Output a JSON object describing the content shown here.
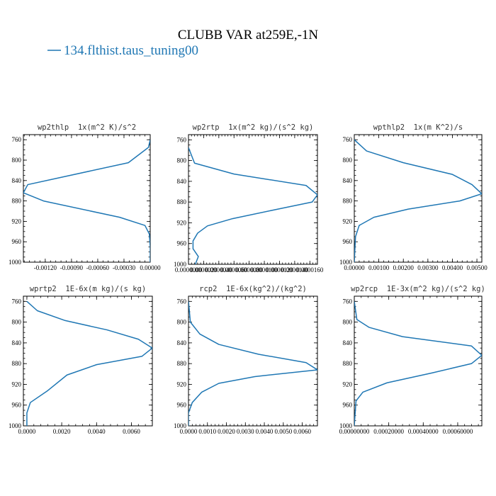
{
  "figure": {
    "title": "CLUBB VAR at259E,-1N",
    "legend": [
      {
        "label": "134.flthist.taus_tuning00",
        "color": "#1f77b4"
      }
    ],
    "series_color": "#1f77b4"
  },
  "chart_data": [
    {
      "type": "line",
      "title": "wp2thlp  1x(m^2 K)/s^2",
      "xlim": [
        -0.00145,
        0.0
      ],
      "ylim": [
        1000,
        750
      ],
      "x_ticks": [
        -0.0012,
        -0.0009,
        -0.0006,
        -0.0003,
        0.0
      ],
      "x_tick_labels": [
        "-0.00120",
        "-0.00090",
        "-0.00060",
        "-0.00030",
        "0.00000"
      ],
      "y_ticks": [
        760,
        800,
        840,
        880,
        920,
        960,
        1000
      ],
      "y_tick_labels": [
        "760",
        "800",
        "840",
        "880",
        "920",
        "960",
        "1000"
      ],
      "x": [
        0.0,
        -2e-05,
        -0.00025,
        -0.0014,
        -0.00145,
        -0.00122,
        -0.00035,
        -6e-05,
        -1e-05,
        0.0,
        0.0
      ],
      "y": [
        760,
        775,
        805,
        848,
        864,
        880,
        912,
        928,
        945,
        970,
        1000
      ]
    },
    {
      "type": "line",
      "title": "wp2rtp  1x(m^2 kg)/(s^2 kg)",
      "xlim": [
        0.0,
        1.7e-05
      ],
      "ylim": [
        1000,
        750
      ],
      "x_ticks": [
        0.0,
        2e-06,
        4e-06,
        6e-06,
        8e-06,
        1e-05,
        1.2e-05,
        1.4e-05,
        1.6e-05
      ],
      "x_tick_labels": [
        "0.0000000",
        "0.0000020",
        "0.0000040",
        "0.0000060",
        "0.0000080",
        "0.0000100",
        "0.0000120",
        "0.0000140",
        "0.0000160"
      ],
      "y_ticks": [
        760,
        800,
        840,
        880,
        920,
        960,
        1000
      ],
      "y_tick_labels": [
        "760",
        "800",
        "840",
        "880",
        "920",
        "960",
        "1000"
      ],
      "x": [
        0.0,
        8e-07,
        6e-06,
        1.55e-05,
        1.7e-05,
        1.63e-05,
        1.1e-05,
        5.8e-06,
        2.5e-06,
        1.2e-06,
        6e-07,
        6e-07,
        1.3e-06,
        9e-07
      ],
      "y": [
        775,
        805,
        826,
        848,
        866,
        880,
        896,
        912,
        926,
        940,
        955,
        970,
        985,
        1000
      ]
    },
    {
      "type": "line",
      "title": "wpthlp2  1x(m K^2)/s",
      "xlim": [
        0.0,
        0.0052
      ],
      "ylim": [
        1000,
        750
      ],
      "x_ticks": [
        0.0,
        0.001,
        0.002,
        0.003,
        0.004,
        0.005
      ],
      "x_tick_labels": [
        "0.00000",
        "0.00100",
        "0.00200",
        "0.00300",
        "0.00400",
        "0.00500"
      ],
      "y_ticks": [
        760,
        800,
        840,
        880,
        920,
        960,
        1000
      ],
      "y_tick_labels": [
        "760",
        "800",
        "840",
        "880",
        "920",
        "960",
        "1000"
      ],
      "x": [
        0.0,
        0.0005,
        0.002,
        0.004,
        0.0048,
        0.0052,
        0.0043,
        0.0022,
        0.0008,
        0.0002,
        5e-05,
        0.0
      ],
      "y": [
        760,
        782,
        805,
        828,
        848,
        866,
        880,
        896,
        912,
        928,
        950,
        1000
      ]
    },
    {
      "type": "line",
      "title": "wprtp2  1E-6x(m kg)/(s kg)",
      "xlim": [
        -0.0002,
        0.0072
      ],
      "ylim": [
        1000,
        750
      ],
      "x_ticks": [
        0.0,
        0.002,
        0.004,
        0.006
      ],
      "x_tick_labels": [
        "0.0000",
        "0.0020",
        "0.0040",
        "0.0060"
      ],
      "y_ticks": [
        760,
        800,
        840,
        880,
        920,
        960,
        1000
      ],
      "y_tick_labels": [
        "760",
        "800",
        "840",
        "880",
        "920",
        "960",
        "1000"
      ],
      "x": [
        0.0,
        0.0006,
        0.0022,
        0.0046,
        0.0064,
        0.0072,
        0.0066,
        0.004,
        0.0023,
        0.0012,
        0.0002,
        0.0,
        0.0
      ],
      "y": [
        760,
        778,
        797,
        815,
        833,
        850,
        866,
        882,
        902,
        932,
        955,
        975,
        1000
      ]
    },
    {
      "type": "line",
      "title": "rcp2  1E-6x(kg^2)/(kg^2)",
      "xlim": [
        0.0,
        0.0068
      ],
      "ylim": [
        1000,
        750
      ],
      "x_ticks": [
        0.0,
        0.001,
        0.002,
        0.003,
        0.004,
        0.005,
        0.006
      ],
      "x_tick_labels": [
        "0.0000",
        "0.0010",
        "0.0020",
        "0.0030",
        "0.0040",
        "0.0050",
        "0.0060"
      ],
      "y_ticks": [
        760,
        800,
        840,
        880,
        920,
        960,
        1000
      ],
      "y_tick_labels": [
        "760",
        "800",
        "840",
        "880",
        "920",
        "960",
        "1000"
      ],
      "x": [
        0.0,
        0.0001,
        0.0006,
        0.0016,
        0.0037,
        0.0062,
        0.0068,
        0.0035,
        0.0016,
        0.0007,
        0.0002,
        0.0,
        0.0
      ],
      "y": [
        760,
        800,
        823,
        843,
        862,
        878,
        892,
        905,
        918,
        935,
        955,
        975,
        1000
      ]
    },
    {
      "type": "line",
      "title": "wp2rcp  1E-3x(m^2 kg)/(s^2 kg)",
      "xlim": [
        0.0,
        0.00074
      ],
      "ylim": [
        1000,
        750
      ],
      "x_ticks": [
        0.0,
        0.0002,
        0.0004,
        0.0006
      ],
      "x_tick_labels": [
        "0.00000000",
        "0.00020000",
        "0.00040000",
        "0.00060000"
      ],
      "y_ticks": [
        760,
        800,
        840,
        880,
        920,
        960,
        1000
      ],
      "y_tick_labels": [
        "760",
        "800",
        "840",
        "880",
        "920",
        "960",
        "1000"
      ],
      "x": [
        0.0,
        1.5e-05,
        8.5e-05,
        0.00028,
        0.00068,
        0.00074,
        0.00068,
        0.00045,
        0.00019,
        5e-05,
        1e-05,
        0.0
      ],
      "y": [
        760,
        795,
        810,
        828,
        846,
        864,
        880,
        898,
        917,
        935,
        952,
        1000
      ]
    }
  ]
}
